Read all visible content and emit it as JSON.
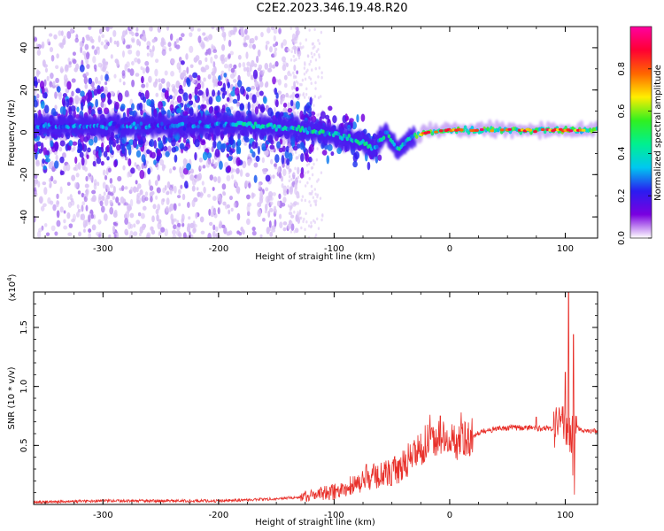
{
  "figure": {
    "title": "C2E2.2023.346.19.48.R20"
  },
  "chart_data": [
    {
      "type": "heatmap",
      "title": "C2E2.2023.346.19.48.R20",
      "xlabel": "Height of straight line (km)",
      "ylabel": "Frequency (Hz)",
      "xlim": [
        -360,
        128
      ],
      "ylim": [
        -50,
        50
      ],
      "x_ticks": [
        -300,
        -200,
        -100,
        0,
        100
      ],
      "y_ticks": [
        -40,
        -20,
        0,
        20,
        40
      ],
      "colorbar": {
        "label": "Normalized spectral amplitude",
        "range": [
          0,
          1
        ],
        "ticks": [
          0.0,
          0.2,
          0.4,
          0.6,
          0.8
        ],
        "colormap": [
          "#ffffff",
          "#7a00e0",
          "#2a1cf0",
          "#00c8f0",
          "#00f090",
          "#30f020",
          "#ffee00",
          "#ff6600",
          "#ff0033",
          "#ff00a0"
        ]
      },
      "ridge": {
        "description_points": [
          {
            "x": -360,
            "y": 3
          },
          {
            "x": -250,
            "y": 3
          },
          {
            "x": -180,
            "y": 4
          },
          {
            "x": -140,
            "y": 2
          },
          {
            "x": -110,
            "y": 0
          },
          {
            "x": -90,
            "y": -2
          },
          {
            "x": -75,
            "y": -5
          },
          {
            "x": -65,
            "y": -8
          },
          {
            "x": -55,
            "y": 0
          },
          {
            "x": -45,
            "y": -8
          },
          {
            "x": -35,
            "y": -3
          },
          {
            "x": -20,
            "y": 0
          },
          {
            "x": 0,
            "y": 1
          },
          {
            "x": 50,
            "y": 1
          },
          {
            "x": 100,
            "y": 1
          },
          {
            "x": 128,
            "y": 1
          }
        ]
      }
    },
    {
      "type": "line",
      "xlabel": "Height of straight line (km)",
      "ylabel": "SNR (10 * v/v)",
      "y_multiplier": "(x10",
      "y_multiplier_exp": "4",
      "y_multiplier_close": ")",
      "xlim": [
        -360,
        128
      ],
      "ylim": [
        0,
        1.8
      ],
      "x_ticks": [
        -300,
        -200,
        -100,
        0,
        100
      ],
      "y_ticks": [
        0.5,
        1.0,
        1.5
      ],
      "y_tick_labels": [
        "0.5",
        "1.0",
        "1.5"
      ],
      "color": "#e8302a",
      "series": [
        {
          "x": [
            -360,
            -300,
            -250,
            -200,
            -170,
            -150,
            -130,
            -120,
            -110,
            -100,
            -90,
            -80,
            -70,
            -60,
            -50,
            -40,
            -30,
            -20,
            -15,
            -10,
            0,
            10,
            20,
            30,
            40,
            50,
            60,
            70,
            80,
            90,
            95,
            100,
            102,
            105,
            108,
            115,
            128
          ],
          "y": [
            0.02,
            0.03,
            0.03,
            0.03,
            0.04,
            0.05,
            0.06,
            0.08,
            0.09,
            0.11,
            0.14,
            0.18,
            0.22,
            0.25,
            0.27,
            0.32,
            0.45,
            0.52,
            0.55,
            0.58,
            0.52,
            0.54,
            0.58,
            0.62,
            0.64,
            0.65,
            0.65,
            0.65,
            0.64,
            0.65,
            0.66,
            0.7,
            0.65,
            0.6,
            0.66,
            0.63,
            0.62
          ]
        }
      ],
      "spikes": [
        {
          "x": -72,
          "y": 0.34
        },
        {
          "x": -52,
          "y": 0.34
        },
        {
          "x": -35,
          "y": 0.38
        },
        {
          "x": -25,
          "y": 0.6
        },
        {
          "x": -17,
          "y": 0.76
        },
        {
          "x": -8,
          "y": 0.75
        },
        {
          "x": 10,
          "y": 0.78
        },
        {
          "x": 75,
          "y": 0.74
        },
        {
          "x": 97,
          "y": 0.76
        },
        {
          "x": 100,
          "y": 1.12
        },
        {
          "x": 103,
          "y": 1.8
        },
        {
          "x": 107,
          "y": 1.44
        }
      ]
    }
  ]
}
